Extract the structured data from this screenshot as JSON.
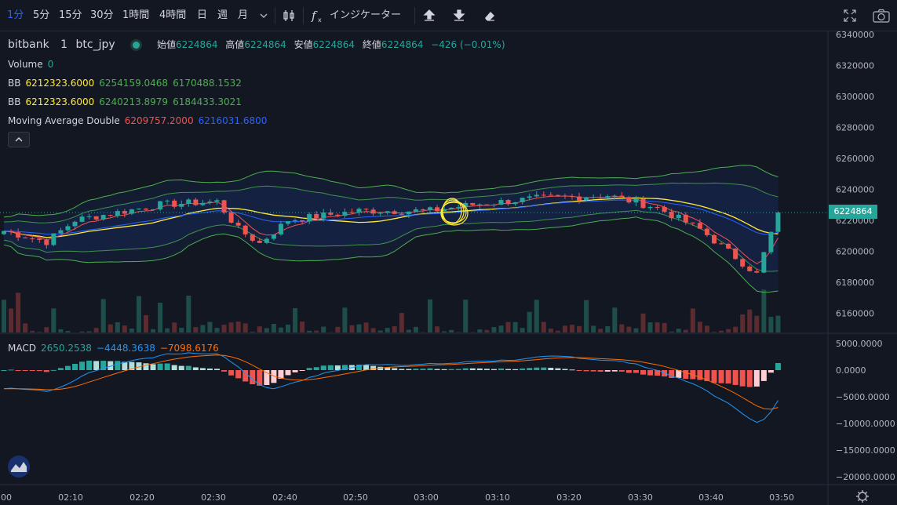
{
  "toolbar": {
    "intervals": [
      "1分",
      "5分",
      "15分",
      "30分",
      "1時間",
      "4時間",
      "日",
      "週",
      "月"
    ],
    "active_interval": "1分",
    "indicators_label": "インジケーター"
  },
  "legend": {
    "exchange": "bitbank",
    "interval": "1",
    "symbol": "btc_jpy",
    "ohlc": {
      "open_label": "始値",
      "open": "6224864",
      "high_label": "高値",
      "high": "6224864",
      "low_label": "安値",
      "low": "6224864",
      "close_label": "終値",
      "close": "6224864",
      "change": "−426 (−0.01%)"
    },
    "volume_label": "Volume",
    "volume_value": "0",
    "bb1": {
      "label": "BB",
      "basis": "6212323.6000",
      "upper": "6254159.0468",
      "lower": "6170488.1532"
    },
    "bb2": {
      "label": "BB",
      "basis": "6212323.6000",
      "upper": "6240213.8979",
      "lower": "6184433.3021"
    },
    "mad": {
      "label": "Moving Average Double",
      "v1": "6209757.2000",
      "v2": "6216031.6800"
    }
  },
  "macd": {
    "label": "MACD",
    "hist": "2650.2538",
    "macd": "−4448.3638",
    "signal": "−7098.6176"
  },
  "price_axis": {
    "ticks": [
      "6340000",
      "6320000",
      "6300000",
      "6280000",
      "6260000",
      "6240000",
      "6220000",
      "6200000",
      "6180000",
      "6160000"
    ],
    "current_price": "6224864"
  },
  "macd_axis": {
    "ticks": [
      "5000.0000",
      "0.0000",
      "−5000.0000",
      "−10000.0000",
      "−15000.0000",
      "−20000.0000"
    ]
  },
  "time_axis": {
    "ticks": [
      "00",
      "02:10",
      "02:20",
      "02:30",
      "02:40",
      "02:50",
      "03:00",
      "03:10",
      "03:20",
      "03:30",
      "03:40",
      "03:50"
    ]
  },
  "colors": {
    "background": "#131722",
    "up": "#26a69a",
    "down": "#ef5350",
    "bb_outer": "#4caf50",
    "bb_basis": "#ffeb3b",
    "ma_red": "#ef5350",
    "ma_blue": "#2962ff",
    "macd_line": "#2196f3",
    "signal_line": "#ff6d00"
  },
  "icons": [
    "chevron-down-icon",
    "bar-style-icon",
    "fx-icon",
    "upload-icon",
    "download-icon",
    "eraser-icon",
    "fullscreen-icon",
    "camera-icon",
    "settings-icon",
    "logo-icon"
  ]
}
